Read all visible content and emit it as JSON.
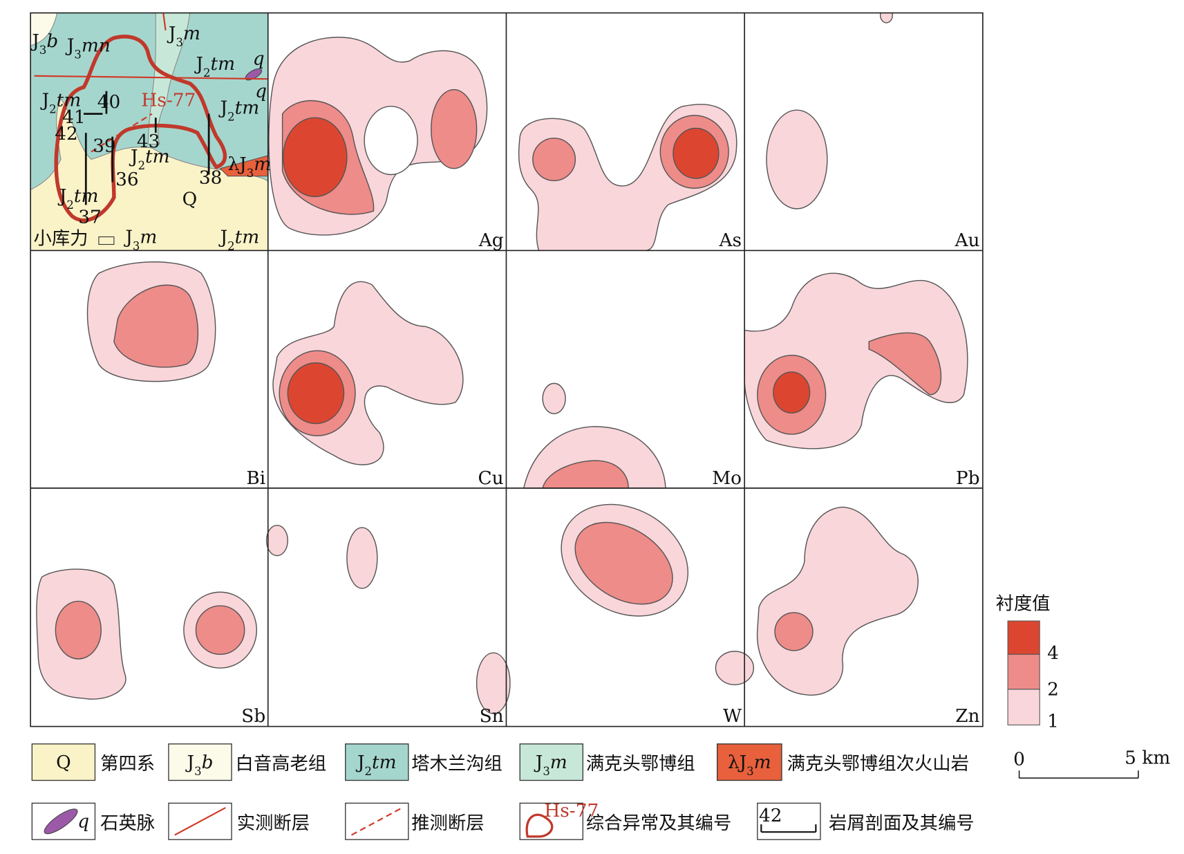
{
  "panels": [
    "Ag",
    "As",
    "Au",
    "Bi",
    "Cu",
    "Mo",
    "Pb",
    "Sb",
    "Sn",
    "W",
    "Zn"
  ],
  "geology_map": {
    "units": [
      {
        "parts": [
          "J",
          "3",
          "b"
        ]
      },
      {
        "parts": [
          "J",
          "3",
          "mn"
        ]
      },
      {
        "parts": [
          "J",
          "3",
          "m"
        ]
      },
      {
        "parts": [
          "J",
          "2",
          "tm"
        ]
      },
      {
        "parts": [
          "J",
          "2",
          "tm"
        ]
      },
      {
        "parts": [
          "J",
          "2",
          "tm"
        ]
      },
      {
        "parts": [
          "J",
          "2",
          "tm"
        ]
      },
      {
        "parts": [
          "J",
          "2",
          "tm"
        ]
      },
      {
        "parts": [
          "J",
          "3",
          "m"
        ]
      },
      {
        "parts": [
          "J",
          "2",
          "tm"
        ]
      },
      {
        "parts": [
          "q"
        ]
      },
      {
        "parts": [
          "q"
        ]
      },
      {
        "parts": [
          "λJ",
          "3",
          "m"
        ]
      },
      {
        "parts": [
          "Q"
        ]
      }
    ],
    "sections": [
      "40",
      "41",
      "42",
      "39",
      "43",
      "36",
      "38",
      "37"
    ],
    "anomaly": "Hs-77",
    "place": "小库力"
  },
  "colorbar": {
    "title": "衬度值",
    "ticks": [
      4,
      2,
      1
    ]
  },
  "legend": [
    {
      "symbol": [
        "Q"
      ],
      "label": "第四系"
    },
    {
      "symbol": [
        "J",
        "3",
        "b"
      ],
      "label": "白音高老组"
    },
    {
      "symbol": [
        "J",
        "2",
        "tm"
      ],
      "label": "塔木兰沟组"
    },
    {
      "symbol": [
        "J",
        "3",
        "m"
      ],
      "label": "满克头鄂博组"
    },
    {
      "symbol": [
        "λJ",
        "3",
        "m"
      ],
      "label": "满克头鄂博组次火山岩"
    },
    {
      "symbol": [
        "q"
      ],
      "label": "石英脉"
    },
    {
      "label": "实测断层"
    },
    {
      "label": "推测断层"
    },
    {
      "symbol": [
        "Hs-77"
      ],
      "label": "综合异常及其编号"
    },
    {
      "symbol": [
        "42"
      ],
      "label": "岩屑剖面及其编号"
    }
  ],
  "scale": {
    "start": "0",
    "end": "5 km"
  }
}
